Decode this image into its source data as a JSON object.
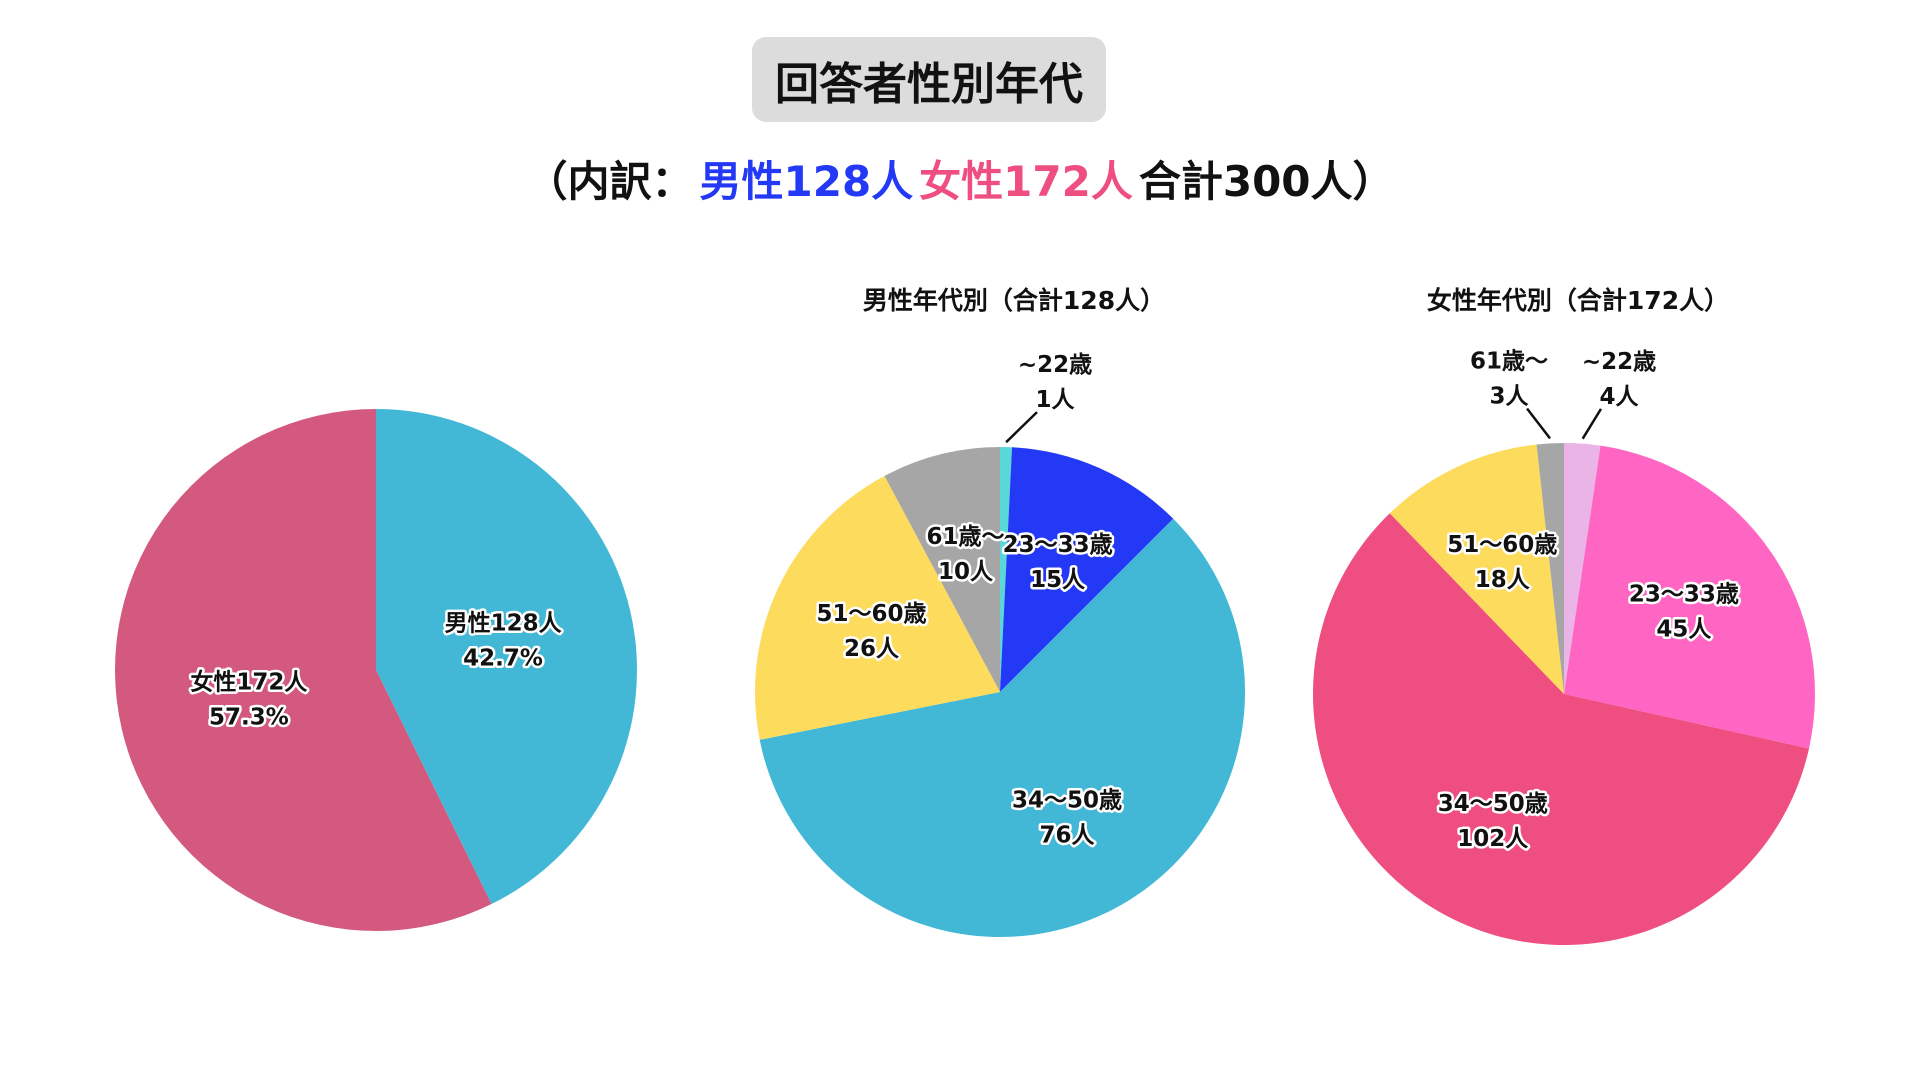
{
  "header": {
    "title": "回答者性別年代",
    "subtitle": [
      "（内訳：",
      "男性128人",
      "女性172人",
      "合計300人）"
    ],
    "subtitle_colors": [
      "#111111",
      "#2339f5",
      "#ee4f80",
      "#111111"
    ]
  },
  "chart_data": [
    {
      "type": "pie",
      "categories": [
        "男性128人",
        "女性172人"
      ],
      "values": [
        42.7,
        57.3
      ],
      "value_labels": [
        "42.7%",
        "57.3%"
      ],
      "colors": [
        "#42b8d6",
        "#d35a7e"
      ]
    },
    {
      "type": "pie",
      "title": "男性年代別（合計128人）",
      "categories": [
        "~22歳",
        "23〜33歳",
        "34〜50歳",
        "51〜60歳",
        "61歳〜"
      ],
      "values": [
        1,
        15,
        76,
        26,
        10
      ],
      "value_labels": [
        "1人",
        "15人",
        "76人",
        "26人",
        "10人"
      ],
      "colors": [
        "#5ad8d8",
        "#2339f5",
        "#42b8d6",
        "#fddb5c",
        "#a6a6a6"
      ]
    },
    {
      "type": "pie",
      "title": "女性年代別（合計172人）",
      "categories": [
        "~22歳",
        "23〜33歳",
        "34〜50歳",
        "51〜60歳",
        "61歳〜"
      ],
      "values": [
        4,
        45,
        102,
        18,
        3
      ],
      "value_labels": [
        "4人",
        "45人",
        "102人",
        "18人",
        "3人"
      ],
      "colors": [
        "#eab4e6",
        "#ff66c4",
        "#ee4f80",
        "#fddb5c",
        "#a6a6a6"
      ]
    }
  ]
}
